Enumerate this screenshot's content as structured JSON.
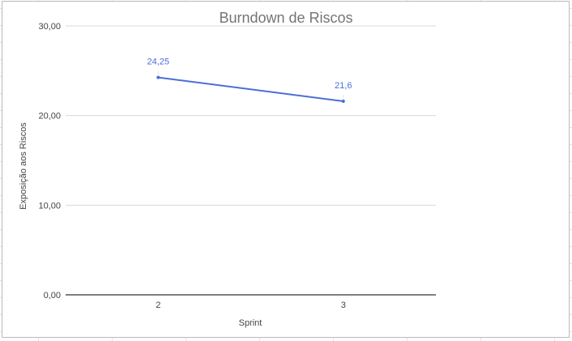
{
  "chart_data": {
    "type": "line",
    "title": "Burndown de Riscos",
    "xlabel": "Sprint",
    "ylabel": "Exposição aos Riscos",
    "categories": [
      "2",
      "3"
    ],
    "series": [
      {
        "values": [
          24.25,
          21.6
        ],
        "data_labels": [
          "24,25",
          "21,6"
        ],
        "color": "#4a6fd6"
      }
    ],
    "yticks": [
      0,
      10,
      20,
      30
    ],
    "ytick_labels": [
      "0,00",
      "10,00",
      "20,00",
      "30,00"
    ],
    "ylim": [
      0,
      30
    ],
    "grid": true,
    "legend": "none"
  },
  "colors": {
    "title": "#757575",
    "axis_text": "#444444",
    "gridline": "#d9d9d9",
    "baseline": "#333333",
    "series_label": "#4a6fd6"
  }
}
